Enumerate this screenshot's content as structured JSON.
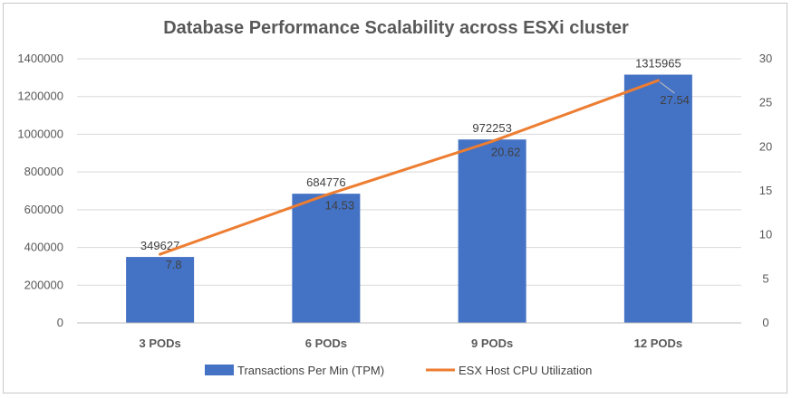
{
  "chart_data": {
    "type": "bar",
    "title": "Database Performance Scalability across  ESXi cluster",
    "categories": [
      "3 PODs",
      "6 PODs",
      "9 PODs",
      "12 PODs"
    ],
    "series": [
      {
        "name": "Transactions Per Min (TPM)",
        "type": "bar",
        "axis": "left",
        "color": "#4472C4",
        "values": [
          349627,
          684776,
          972253,
          1315965
        ]
      },
      {
        "name": "ESX Host CPU Utilization",
        "type": "line",
        "axis": "right",
        "color": "#ED7D31",
        "values": [
          7.8,
          14.53,
          20.62,
          27.54
        ]
      }
    ],
    "y_left": {
      "ylim": [
        0,
        1400000
      ],
      "ticks": [
        "0",
        "200000",
        "400000",
        "600000",
        "800000",
        "1000000",
        "1200000",
        "1400000"
      ]
    },
    "y_right": {
      "ylim": [
        0,
        30
      ],
      "ticks": [
        "0",
        "5",
        "10",
        "15",
        "20",
        "25",
        "30"
      ]
    },
    "grid": true,
    "legend_position": "bottom"
  }
}
